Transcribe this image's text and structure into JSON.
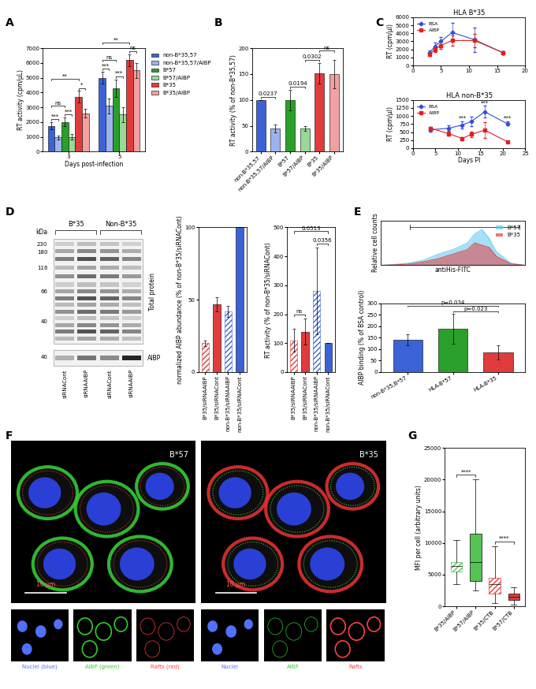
{
  "chart_data": [
    {
      "panel": "A",
      "type": "bar",
      "categories": [
        "3",
        "5"
      ],
      "x_label": "Days post-infection",
      "y_label": "RT activity (cpm/µL)",
      "ylim": [
        0,
        7000
      ],
      "yticks": [
        0,
        1000,
        2000,
        3000,
        4000,
        5000,
        6000,
        7000
      ],
      "legend": "right",
      "series": [
        {
          "name": "non-B*35,57",
          "color": "#3b63d6",
          "values": [
            1750,
            5000
          ],
          "errors": [
            250,
            400
          ]
        },
        {
          "name": "non-B*35,57/AIBP",
          "color": "#9db3ef",
          "values": [
            950,
            3100
          ],
          "errors": [
            150,
            500
          ]
        },
        {
          "name": "B*57",
          "color": "#2aa02a",
          "values": [
            2000,
            4300
          ],
          "errors": [
            300,
            600
          ]
        },
        {
          "name": "B*57/AIBP",
          "color": "#98d998",
          "values": [
            1000,
            2500
          ],
          "errors": [
            200,
            500
          ]
        },
        {
          "name": "B*35",
          "color": "#e03c3c",
          "values": [
            3700,
            6200
          ],
          "errors": [
            400,
            400
          ]
        },
        {
          "name": "B*35/AIBP",
          "color": "#f2a0a0",
          "values": [
            2600,
            5500
          ],
          "errors": [
            300,
            500
          ]
        }
      ],
      "comparisons": [
        {
          "category": "3",
          "between": [
            "non-B*35,57",
            "non-B*35,57/AIBP"
          ],
          "label": "***"
        },
        {
          "category": "3",
          "between": [
            "B*57",
            "B*57/AIBP"
          ],
          "label": "***"
        },
        {
          "category": "3",
          "between": [
            "B*35",
            "B*35/AIBP"
          ],
          "label": "*"
        },
        {
          "category": "3",
          "between": [
            "non-B*35,57",
            "B*57"
          ],
          "label": "ns"
        },
        {
          "category": "3",
          "between": [
            "non-B*35,57",
            "B*35"
          ],
          "label": "**"
        },
        {
          "category": "5",
          "between": [
            "non-B*35,57",
            "non-B*35,57/AIBP"
          ],
          "label": "***"
        },
        {
          "category": "5",
          "between": [
            "B*57",
            "B*57/AIBP"
          ],
          "label": "***"
        },
        {
          "category": "5",
          "between": [
            "B*35",
            "B*35/AIBP"
          ],
          "label": "ns"
        },
        {
          "category": "5",
          "between": [
            "non-B*35,57",
            "B*57"
          ],
          "label": "ns"
        },
        {
          "category": "5",
          "between": [
            "non-B*35,57",
            "B*35"
          ],
          "label": "**"
        }
      ]
    },
    {
      "panel": "B",
      "type": "bar",
      "categories": [
        "non-B*35,57",
        "non-B*35,57/AIBP",
        "B*57",
        "B*57/AIBP",
        "B*35",
        "B*35/AIBP"
      ],
      "values": [
        100,
        45,
        100,
        45,
        152,
        150
      ],
      "errors": [
        0,
        8,
        20,
        5,
        20,
        28
      ],
      "colors": [
        "#3b63d6",
        "#9db3ef",
        "#2aa02a",
        "#98d998",
        "#e03c3c",
        "#f2a0a0"
      ],
      "y_label": "RT activity (% of non-B*35,57)",
      "ylim": [
        0,
        200
      ],
      "yticks": [
        0,
        50,
        100,
        150,
        200
      ],
      "comparisons": [
        {
          "between": [
            "non-B*35,57",
            "non-B*35,57/AIBP"
          ],
          "label": "0.0237"
        },
        {
          "between": [
            "B*57",
            "B*57/AIBP"
          ],
          "label": "0.0194"
        },
        {
          "between": [
            "B*57/AIBP",
            "B*35"
          ],
          "label": "0.0302"
        },
        {
          "between": [
            "B*35",
            "B*35/AIBP"
          ],
          "label": "ns"
        }
      ]
    },
    {
      "panel": "C",
      "type": "line",
      "title": "HLA B*35",
      "x": [
        3,
        4,
        5,
        7,
        11,
        16
      ],
      "xlim": [
        0,
        20
      ],
      "xticks": [
        0,
        5,
        10,
        15,
        20
      ],
      "ylim": [
        0,
        6000
      ],
      "yticks": [
        0,
        1000,
        2000,
        3000,
        4000,
        5000,
        6000
      ],
      "y_label": "RT (cpm/µl)",
      "legend": "upper left",
      "series": [
        {
          "name": "BSA",
          "color": "#2f4fd8",
          "marker": "diamond",
          "values": [
            1600,
            2400,
            3000,
            4100,
            3200,
            1600
          ],
          "errors": [
            300,
            400,
            500,
            1200,
            1500,
            200
          ]
        },
        {
          "name": "AIBP",
          "color": "#e02020",
          "marker": "square",
          "values": [
            1400,
            2000,
            2500,
            3100,
            3100,
            1600
          ],
          "errors": [
            200,
            300,
            400,
            600,
            800,
            200
          ]
        }
      ]
    },
    {
      "panel": "C",
      "type": "line",
      "title": "HLA non-B*35",
      "x": [
        4,
        8,
        11,
        13,
        16,
        21
      ],
      "xlim": [
        0,
        25
      ],
      "xticks": [
        0,
        5,
        10,
        15,
        20,
        25
      ],
      "ylim": [
        0,
        1500
      ],
      "yticks": [
        0,
        250,
        500,
        750,
        1000,
        1250,
        1500
      ],
      "x_label": "Days PI",
      "y_label": "RT (cpm/µl)",
      "legend": "upper left",
      "series": [
        {
          "name": "BSA",
          "color": "#2f4fd8",
          "marker": "diamond",
          "values": [
            570,
            620,
            720,
            830,
            1130,
            760
          ],
          "errors": [
            60,
            80,
            120,
            140,
            180,
            60
          ]
        },
        {
          "name": "AIBP",
          "color": "#e02020",
          "marker": "square",
          "values": [
            620,
            450,
            300,
            430,
            560,
            200
          ],
          "errors": [
            50,
            60,
            50,
            80,
            250,
            30
          ]
        }
      ],
      "annotations": [
        {
          "x": 11,
          "label": "***"
        },
        {
          "x": 16,
          "label": "***"
        },
        {
          "x": 21,
          "label": "***"
        }
      ]
    },
    {
      "panel": "D",
      "type": "bar",
      "categories": [
        "B*35/siRNAAIBP",
        "B*35/siRNACont",
        "non-B*35/siRNAAIBP",
        "non-B*35/siRNACont"
      ],
      "values": [
        20,
        47,
        42,
        100
      ],
      "errors": [
        2,
        5,
        4,
        0
      ],
      "colors": [
        "#e03c3c",
        "#e03c3c",
        "#3b63d6",
        "#3b63d6"
      ],
      "y_label": "normalized AIBP abundance (% of non-B*35/siRNACont)",
      "ylim": [
        0,
        100
      ],
      "yticks": [
        0,
        50,
        100
      ]
    },
    {
      "panel": "D",
      "type": "bar",
      "categories": [
        "B*35/siRNAAIBP",
        "B*35/siRNACont",
        "non-B*35/siRNAAIBP",
        "non-B*35/siRNACont"
      ],
      "values": [
        110,
        140,
        280,
        100
      ],
      "errors": [
        40,
        45,
        150,
        0
      ],
      "colors": [
        "#e03c3c",
        "#e03c3c",
        "#3b63d6",
        "#3b63d6"
      ],
      "y_label": "RT activity (% of non-B*35/siRNACont)",
      "ylim": [
        0,
        500
      ],
      "yticks": [
        0,
        100,
        200,
        300,
        400,
        500
      ],
      "comparisons": [
        {
          "between": [
            "B*35/siRNAAIBP",
            "B*35/siRNACont"
          ],
          "label": "ns"
        },
        {
          "between": [
            "B*35/siRNAAIBP",
            "non-B*35/siRNACont"
          ],
          "label": "0.0513"
        },
        {
          "between": [
            "non-B*35/siRNAAIBP",
            "non-B*35/siRNACont"
          ],
          "label": "0.0356"
        }
      ]
    },
    {
      "panel": "E",
      "type": "area",
      "x": [
        0,
        0.5,
        1,
        1.5,
        2,
        2.5,
        3,
        3.25,
        3.5,
        3.75,
        4,
        4.5,
        5
      ],
      "xlim": [
        0,
        5
      ],
      "ylim": [
        0,
        100
      ],
      "tick_labels": false,
      "x_label": "antiHis-FITC",
      "y_label": "Relative cell counts",
      "legend": "upper right",
      "series": [
        {
          "name": "B*57",
          "color": "#5bc8f0",
          "values": [
            0,
            2,
            5,
            12,
            25,
            35,
            50,
            70,
            80,
            60,
            30,
            5,
            0
          ]
        },
        {
          "name": "B*35",
          "color": "#e04040",
          "values": [
            0,
            1,
            3,
            8,
            15,
            25,
            35,
            50,
            45,
            40,
            20,
            3,
            0
          ]
        }
      ]
    },
    {
      "panel": "E",
      "type": "bar",
      "categories": [
        "non-B*35,B*57",
        "HLA-B*57",
        "HLA-B*35"
      ],
      "values": [
        140,
        190,
        85
      ],
      "errors": [
        25,
        65,
        30
      ],
      "colors": [
        "#3b63d6",
        "#2aa02a",
        "#e03c3c"
      ],
      "y_label": "AIBP binding (% of BSA control)",
      "ylim": [
        0,
        300
      ],
      "yticks": [
        0,
        50,
        100,
        150,
        200,
        250,
        300
      ],
      "comparisons": [
        {
          "between": [
            "non-B*35,B*57",
            "HLA-B*35"
          ],
          "label": "p=0.034"
        },
        {
          "between": [
            "HLA-B*57",
            "HLA-B*35"
          ],
          "label": "p=0.023"
        }
      ]
    },
    {
      "panel": "G",
      "type": "box",
      "categories": [
        "B*35/AIBP",
        "B*57/AIBP",
        "B*35/CTB",
        "B*57/CTB"
      ],
      "boxes": [
        {
          "min": 3500,
          "q1": 5500,
          "median": 6300,
          "q3": 7000,
          "max": 10500
        },
        {
          "min": 2500,
          "q1": 4000,
          "median": 7000,
          "q3": 11500,
          "max": 20000
        },
        {
          "min": 500,
          "q1": 2000,
          "median": 3500,
          "q3": 4500,
          "max": 9500
        },
        {
          "min": 300,
          "q1": 1000,
          "median": 1500,
          "q3": 2000,
          "max": 3000
        }
      ],
      "colors": [
        "#55c455",
        "#55c455",
        "#e03c3c",
        "#e03c3c"
      ],
      "y_label": "MFI per cell (arbitrary units)",
      "ylim": [
        0,
        25000
      ],
      "yticks": [
        0,
        5000,
        10000,
        15000,
        20000,
        25000
      ],
      "comparisons": [
        {
          "between": [
            "B*35/AIBP",
            "B*57/AIBP"
          ],
          "label": "****"
        },
        {
          "between": [
            "B*35/CTB",
            "B*57/CTB"
          ],
          "label": "****"
        }
      ]
    }
  ],
  "gel": {
    "panel": "D",
    "groups": [
      "B*35",
      "Non-B*35"
    ],
    "lanes": [
      "siRNACont",
      "siRNAAIBP",
      "siRNACont",
      "siRNAAIBP"
    ],
    "unit": "kDa",
    "markers": [
      230,
      180,
      116,
      66,
      40,
      40
    ],
    "regions": [
      "Total protein",
      "AIBP"
    ]
  },
  "micrographs": {
    "panel": "F",
    "images": [
      {
        "label": "B*57",
        "scale_bar": "10 µm",
        "channels": [
          "Nuclei (blue)",
          "AIBP (green)",
          "Rafts (red)"
        ]
      },
      {
        "label": "B*35",
        "scale_bar": "10 µm",
        "channels": [
          "Nuclei",
          "AIBP",
          "Rafts"
        ]
      }
    ]
  }
}
